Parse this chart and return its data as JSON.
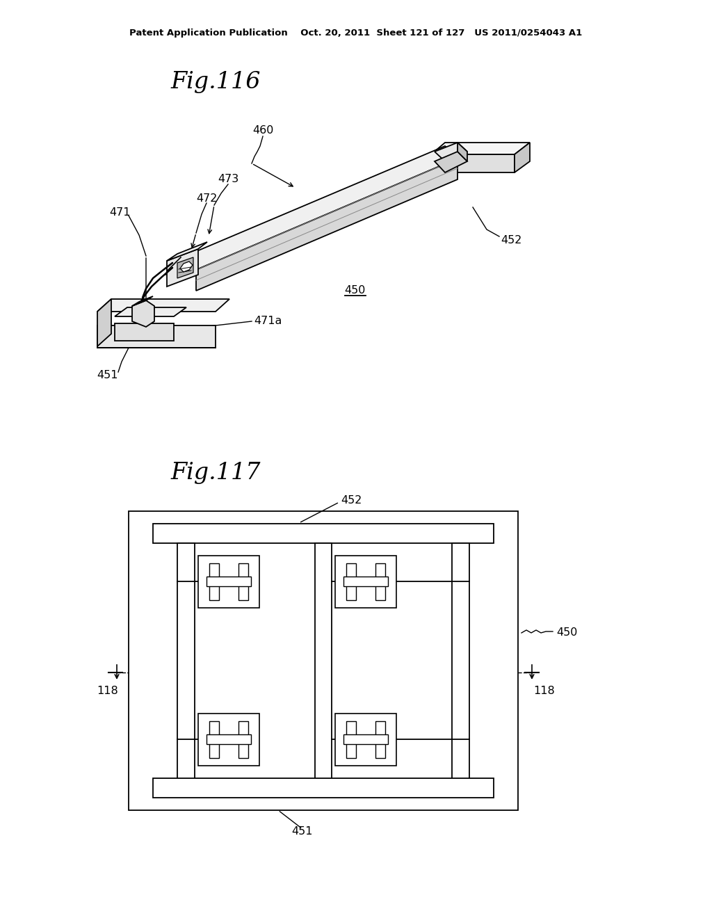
{
  "bg_color": "#ffffff",
  "header_text": "Patent Application Publication    Oct. 20, 2011  Sheet 121 of 127   US 2011/0254043 A1",
  "fig116_title": "Fig.116",
  "fig117_title": "Fig.117",
  "line_color": "#000000",
  "fill_light": "#f0f0f0",
  "fill_mid": "#d8d8d8",
  "fill_dark": "#b0b0b0"
}
